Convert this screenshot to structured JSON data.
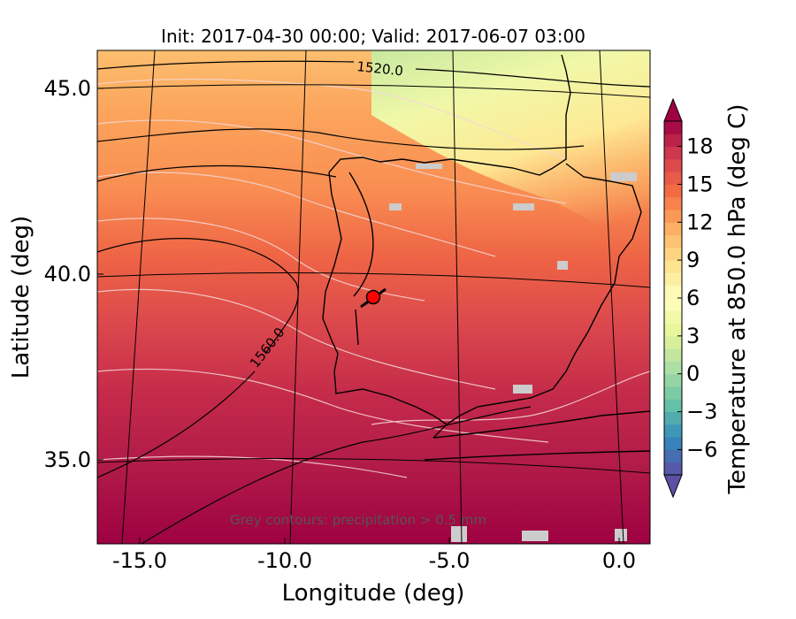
{
  "title": "Init: 2017-04-30 00:00; Valid: 2017-06-07 03:00",
  "xlabel": "Longitude (deg)",
  "ylabel": "Latitude (deg)",
  "xticks": [
    "-15.0",
    "-10.0",
    "-5.0",
    "0.0"
  ],
  "yticks": [
    "35.0",
    "40.0",
    "45.0"
  ],
  "colorbar": {
    "label": "Temperature at 850.0 hPa (deg C)",
    "ticks": [
      "−6",
      "−3",
      "0",
      "3",
      "6",
      "9",
      "12",
      "15",
      "18"
    ],
    "tick_values": [
      -6,
      -3,
      0,
      3,
      6,
      9,
      12,
      15,
      18
    ],
    "range": [
      -8,
      20
    ],
    "extend": "both",
    "colormap": "Spectral_r"
  },
  "map": {
    "lon_range": [
      -16,
      0.3
    ],
    "lat_range": [
      32.7,
      46.0
    ],
    "height_contours": [
      "1520.0",
      "1560.0"
    ],
    "marker": {
      "lon": -7.6,
      "lat": 39.3,
      "color": "#ff0000"
    },
    "note": "Grey contours: precipitation > 0.5 mm"
  },
  "chart_data": {
    "type": "heatmap",
    "title": "Init: 2017-04-30 00:00; Valid: 2017-06-07 03:00",
    "xlabel": "Longitude (deg)",
    "ylabel": "Latitude (deg)",
    "xlim": [
      -16,
      0.3
    ],
    "ylim": [
      32.7,
      46.0
    ],
    "zlabel": "Temperature at 850.0 hPa (deg C)",
    "zlim": [
      -8,
      20
    ]
  }
}
